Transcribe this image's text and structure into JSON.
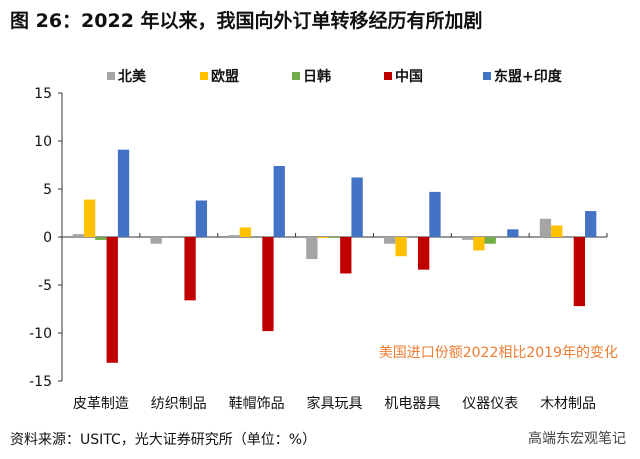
{
  "title": "图 26：2022 年以来，我国向外订单转移经历有所加剧",
  "source": "资料来源：USITC，光大证券研究所（单位：%）",
  "watermark": "高端东宏观笔记",
  "chart_data": {
    "type": "bar",
    "annotation": "美国进口份额2022相比2019年的变化",
    "categories": [
      "皮革制造",
      "纺织制品",
      "鞋帽饰品",
      "家具玩具",
      "机电器具",
      "仪器仪表",
      "木材制品"
    ],
    "ylim": [
      -15,
      15
    ],
    "yticks": [
      15,
      10,
      5,
      0,
      -5,
      -10,
      -15
    ],
    "legend_position": "top",
    "series": [
      {
        "name": "北美",
        "color": "#a5a5a5",
        "values": [
          0.3,
          -0.7,
          0.2,
          -2.3,
          -0.7,
          -0.3,
          1.9
        ]
      },
      {
        "name": "欧盟",
        "color": "#ffc000",
        "values": [
          3.9,
          0,
          1.0,
          -0.1,
          -2.0,
          -1.4,
          1.2
        ]
      },
      {
        "name": "日韩",
        "color": "#70ad47",
        "values": [
          -0.3,
          0,
          0,
          -0.1,
          0,
          -0.7,
          0
        ]
      },
      {
        "name": "中国",
        "color": "#c00000",
        "values": [
          -13.1,
          -6.6,
          -9.8,
          -3.8,
          -3.4,
          0,
          -7.2
        ]
      },
      {
        "name": "东盟+印度",
        "color": "#4472c4",
        "values": [
          9.1,
          3.8,
          7.4,
          6.2,
          4.7,
          0.8,
          2.7
        ]
      }
    ]
  }
}
